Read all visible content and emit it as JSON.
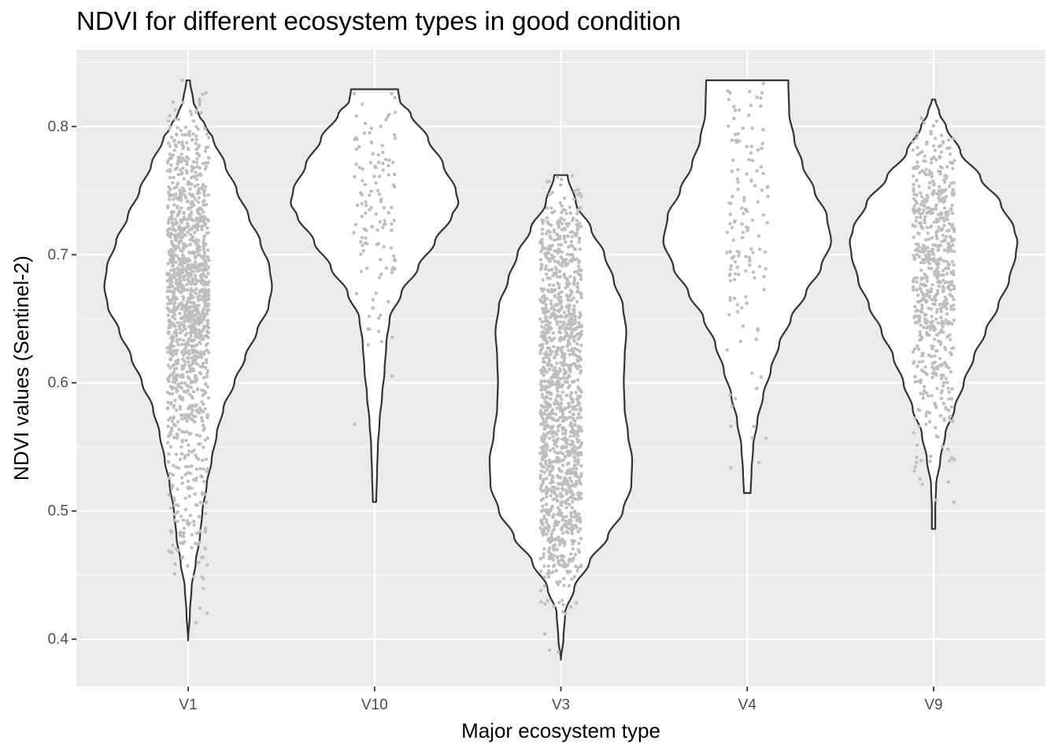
{
  "chart_data": {
    "type": "violin",
    "title": "NDVI for different ecosystem types in good condition",
    "xlabel": "Major ecosystem type",
    "ylabel": "NDVI values (Sentinel-2)",
    "ylim": [
      0.363,
      0.86
    ],
    "y_ticks": [
      "0.4",
      "0.5",
      "0.6",
      "0.7",
      "0.8"
    ],
    "y_tick_values": [
      0.4,
      0.5,
      0.6,
      0.7,
      0.8
    ],
    "categories": [
      "V1",
      "V10",
      "V3",
      "V4",
      "V9"
    ],
    "grid": true,
    "panel_background": "#ebebeb",
    "violin_fill": "#ffffff",
    "violin_outline": "#333333",
    "point_color": "#bebebe",
    "series": [
      {
        "category": "V1",
        "min": 0.399,
        "max": 0.836,
        "n_points": 1300,
        "density_profile": [
          [
            0.399,
            0.0
          ],
          [
            0.42,
            0.02
          ],
          [
            0.44,
            0.04
          ],
          [
            0.46,
            0.09
          ],
          [
            0.48,
            0.14
          ],
          [
            0.5,
            0.17
          ],
          [
            0.52,
            0.22
          ],
          [
            0.54,
            0.28
          ],
          [
            0.56,
            0.34
          ],
          [
            0.58,
            0.42
          ],
          [
            0.6,
            0.55
          ],
          [
            0.62,
            0.68
          ],
          [
            0.64,
            0.82
          ],
          [
            0.66,
            0.96
          ],
          [
            0.675,
            1.0
          ],
          [
            0.69,
            0.97
          ],
          [
            0.71,
            0.86
          ],
          [
            0.73,
            0.72
          ],
          [
            0.75,
            0.58
          ],
          [
            0.77,
            0.44
          ],
          [
            0.79,
            0.3
          ],
          [
            0.8,
            0.21
          ],
          [
            0.81,
            0.12
          ],
          [
            0.82,
            0.06
          ],
          [
            0.836,
            0.02
          ]
        ]
      },
      {
        "category": "V10",
        "min": 0.507,
        "max": 0.829,
        "n_points": 130,
        "density_profile": [
          [
            0.507,
            0.02
          ],
          [
            0.53,
            0.03
          ],
          [
            0.55,
            0.04
          ],
          [
            0.57,
            0.06
          ],
          [
            0.59,
            0.09
          ],
          [
            0.61,
            0.12
          ],
          [
            0.63,
            0.14
          ],
          [
            0.65,
            0.18
          ],
          [
            0.67,
            0.32
          ],
          [
            0.69,
            0.52
          ],
          [
            0.71,
            0.72
          ],
          [
            0.73,
            0.92
          ],
          [
            0.74,
            1.0
          ],
          [
            0.75,
            0.97
          ],
          [
            0.77,
            0.82
          ],
          [
            0.79,
            0.64
          ],
          [
            0.81,
            0.43
          ],
          [
            0.82,
            0.3
          ],
          [
            0.829,
            0.28
          ]
        ]
      },
      {
        "category": "V3",
        "min": 0.384,
        "max": 0.762,
        "n_points": 1300,
        "density_profile": [
          [
            0.384,
            0.0
          ],
          [
            0.4,
            0.03
          ],
          [
            0.42,
            0.05
          ],
          [
            0.44,
            0.16
          ],
          [
            0.46,
            0.34
          ],
          [
            0.48,
            0.56
          ],
          [
            0.5,
            0.74
          ],
          [
            0.52,
            0.84
          ],
          [
            0.54,
            0.85
          ],
          [
            0.56,
            0.8
          ],
          [
            0.58,
            0.76
          ],
          [
            0.6,
            0.75
          ],
          [
            0.62,
            0.76
          ],
          [
            0.64,
            0.78
          ],
          [
            0.66,
            0.74
          ],
          [
            0.68,
            0.63
          ],
          [
            0.7,
            0.52
          ],
          [
            0.72,
            0.36
          ],
          [
            0.74,
            0.18
          ],
          [
            0.762,
            0.08
          ]
        ]
      },
      {
        "category": "V4",
        "min": 0.514,
        "max": 0.836,
        "n_points": 140,
        "density_profile": [
          [
            0.514,
            0.04
          ],
          [
            0.53,
            0.05
          ],
          [
            0.55,
            0.07
          ],
          [
            0.57,
            0.12
          ],
          [
            0.59,
            0.19
          ],
          [
            0.61,
            0.28
          ],
          [
            0.63,
            0.38
          ],
          [
            0.65,
            0.52
          ],
          [
            0.67,
            0.7
          ],
          [
            0.69,
            0.88
          ],
          [
            0.71,
            1.0
          ],
          [
            0.73,
            0.95
          ],
          [
            0.75,
            0.8
          ],
          [
            0.77,
            0.66
          ],
          [
            0.79,
            0.56
          ],
          [
            0.81,
            0.5
          ],
          [
            0.836,
            0.49
          ]
        ]
      },
      {
        "category": "V9",
        "min": 0.486,
        "max": 0.821,
        "n_points": 650,
        "density_profile": [
          [
            0.486,
            0.02
          ],
          [
            0.5,
            0.02
          ],
          [
            0.52,
            0.03
          ],
          [
            0.54,
            0.08
          ],
          [
            0.56,
            0.14
          ],
          [
            0.58,
            0.25
          ],
          [
            0.6,
            0.36
          ],
          [
            0.62,
            0.48
          ],
          [
            0.64,
            0.62
          ],
          [
            0.66,
            0.77
          ],
          [
            0.68,
            0.9
          ],
          [
            0.7,
            0.98
          ],
          [
            0.71,
            1.0
          ],
          [
            0.72,
            0.96
          ],
          [
            0.74,
            0.8
          ],
          [
            0.76,
            0.56
          ],
          [
            0.78,
            0.32
          ],
          [
            0.8,
            0.15
          ],
          [
            0.81,
            0.07
          ],
          [
            0.821,
            0.02
          ]
        ]
      }
    ]
  }
}
